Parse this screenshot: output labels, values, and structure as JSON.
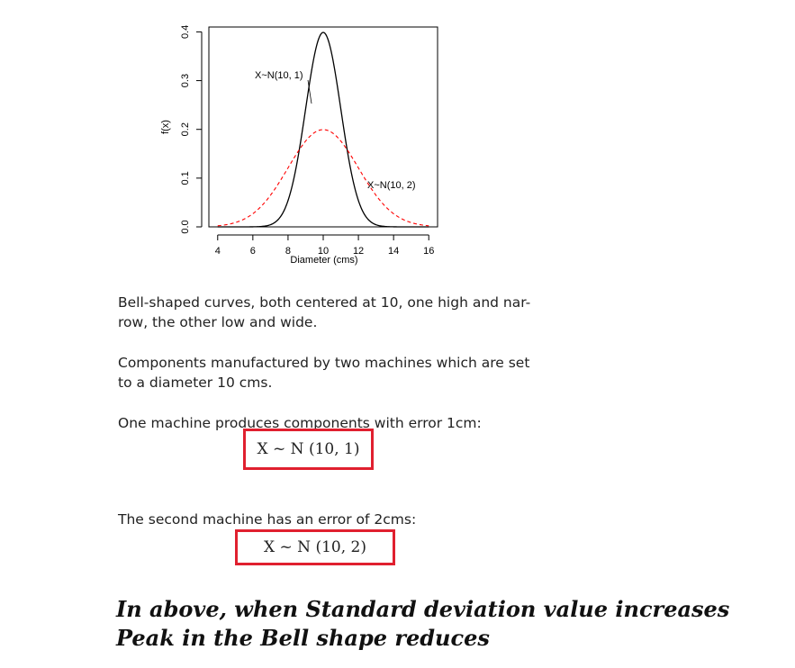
{
  "chart_data": {
    "type": "line",
    "xlabel": "Diameter (cms)",
    "ylabel": "f(x)",
    "xlim": [
      3.5,
      16.5
    ],
    "ylim": [
      0,
      0.41
    ],
    "xticks": [
      "4",
      "6",
      "8",
      "10",
      "12",
      "14",
      "16"
    ],
    "yticks": [
      "0.0",
      "0.1",
      "0.2",
      "0.3",
      "0.4"
    ],
    "series": [
      {
        "name": "X~N(10, 1)",
        "mean": 10,
        "sd": 1,
        "style": "solid",
        "color": "#000000"
      },
      {
        "name": "X~N(10, 2)",
        "mean": 10,
        "sd": 2,
        "style": "dashed",
        "color": "#ff0000"
      }
    ],
    "annotations": [
      "X~N(10, 1)",
      "X~N(10, 2)"
    ]
  },
  "text": {
    "p1_line1": "Bell-shaped curves, both centered at 10, one high and nar-",
    "p1_line2": "row, the other low and wide.",
    "p2_line1": "Components manufactured by two machines which are set",
    "p2_line2": "to a diameter 10 cms.",
    "p3": "One machine produces components with error 1cm:",
    "eq1": "X ~ N (10, 1)",
    "p4": "The second machine has an error of 2cms:",
    "eq2": "X ~ N (10, 2)",
    "conclusion": "In above, when Standard deviation value increases Peak in the Bell shape reduces"
  }
}
